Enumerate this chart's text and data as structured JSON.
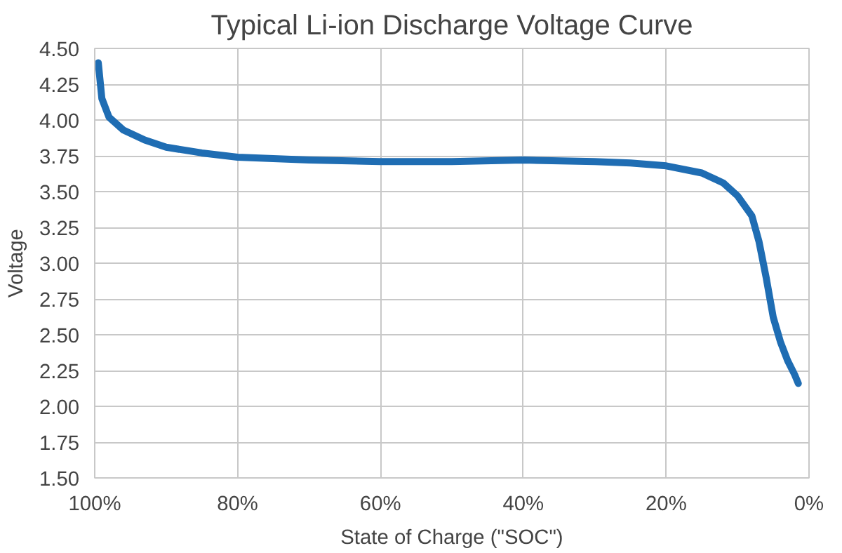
{
  "chart_data": {
    "type": "line",
    "title": "Typical Li-ion Discharge Voltage Curve",
    "xlabel": "State of Charge (\"SOC\")",
    "ylabel": "Voltage",
    "x": [
      99.5,
      99,
      98,
      96,
      93,
      90,
      85,
      80,
      70,
      60,
      50,
      40,
      30,
      25,
      20,
      15,
      12,
      10,
      8,
      7,
      6,
      5,
      4,
      3,
      2,
      1.5
    ],
    "series": [
      {
        "color": "#1f6db3",
        "values": [
          4.4,
          4.15,
          4.02,
          3.93,
          3.86,
          3.81,
          3.77,
          3.74,
          3.72,
          3.71,
          3.71,
          3.72,
          3.71,
          3.7,
          3.68,
          3.63,
          3.56,
          3.47,
          3.33,
          3.15,
          2.9,
          2.62,
          2.45,
          2.32,
          2.22,
          2.16
        ]
      }
    ],
    "xlim": [
      100,
      0
    ],
    "ylim": [
      1.5,
      4.5
    ],
    "xticks": [
      {
        "value": 100,
        "label": "100%"
      },
      {
        "value": 80,
        "label": "80%"
      },
      {
        "value": 60,
        "label": "60%"
      },
      {
        "value": 40,
        "label": "40%"
      },
      {
        "value": 20,
        "label": "20%"
      },
      {
        "value": 0,
        "label": "0%"
      }
    ],
    "yticks": [
      {
        "value": 1.5,
        "label": "1.50"
      },
      {
        "value": 1.75,
        "label": "1.75"
      },
      {
        "value": 2.0,
        "label": "2.00"
      },
      {
        "value": 2.25,
        "label": "2.25"
      },
      {
        "value": 2.5,
        "label": "2.50"
      },
      {
        "value": 2.75,
        "label": "2.75"
      },
      {
        "value": 3.0,
        "label": "3.00"
      },
      {
        "value": 3.25,
        "label": "3.25"
      },
      {
        "value": 3.5,
        "label": "3.50"
      },
      {
        "value": 3.75,
        "label": "3.75"
      },
      {
        "value": 4.0,
        "label": "4.00"
      },
      {
        "value": 4.25,
        "label": "4.25"
      },
      {
        "value": 4.5,
        "label": "4.50"
      }
    ],
    "grid": true,
    "marker": "none",
    "line_style": "solid"
  }
}
